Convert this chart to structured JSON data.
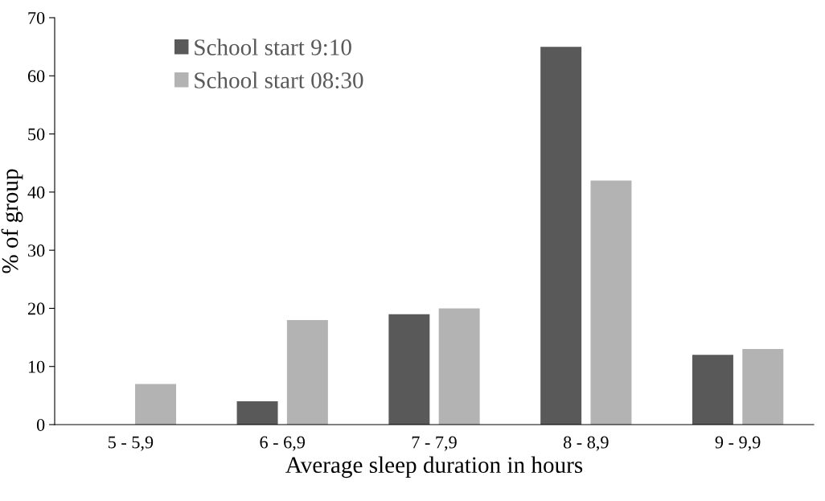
{
  "chart_data": {
    "type": "bar",
    "xlabel": "Average sleep duration in hours",
    "ylabel": "% of group",
    "categories": [
      "5 - 5,9",
      "6 - 6,9",
      "7 - 7,9",
      "8 - 8,9",
      "9 - 9,9"
    ],
    "series": [
      {
        "name": "School start 9:10",
        "color": "#595959",
        "values": [
          0,
          4,
          19,
          65,
          12
        ]
      },
      {
        "name": "School start 08:30",
        "color": "#b3b3b3",
        "values": [
          7,
          18,
          20,
          42,
          13
        ]
      }
    ],
    "ylim": [
      0,
      70
    ],
    "yticks": [
      0,
      10,
      20,
      30,
      40,
      50,
      60,
      70
    ],
    "grid": false,
    "legend": "top left"
  }
}
